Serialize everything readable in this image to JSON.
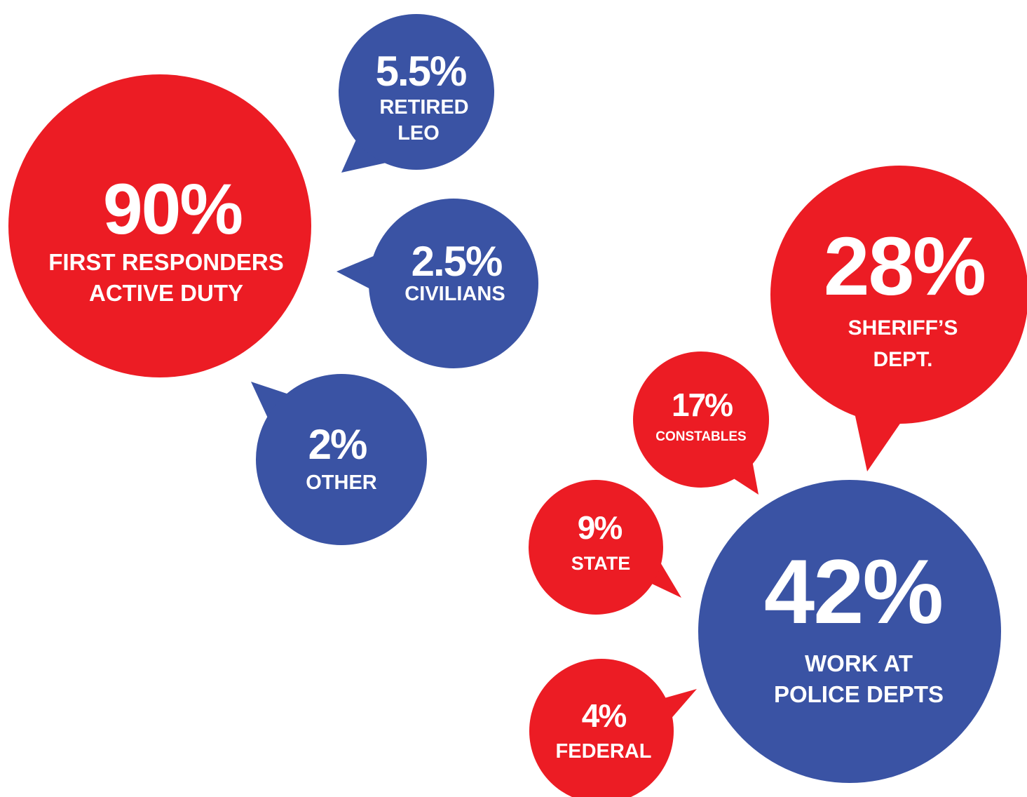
{
  "colors": {
    "red": "#ec1c24",
    "blue": "#3a53a4",
    "text": "#ffffff"
  },
  "bubbles": {
    "first_responders": {
      "value": "90%",
      "line1": "FIRST RESPONDERS",
      "line2": "ACTIVE DUTY",
      "color": "red"
    },
    "retired_leo": {
      "value": "5.5%",
      "line1": "RETIRED",
      "line2": "LEO",
      "color": "blue"
    },
    "civilians": {
      "value": "2.5%",
      "line1": "CIVILIANS",
      "color": "blue"
    },
    "other": {
      "value": "2%",
      "line1": "OTHER",
      "color": "blue"
    },
    "sheriffs": {
      "value": "28%",
      "line1": "SHERIFF’S",
      "line2": "DEPT.",
      "color": "red"
    },
    "constables": {
      "value": "17%",
      "line1": "CONSTABLES",
      "color": "red"
    },
    "state": {
      "value": "9%",
      "line1": "STATE",
      "color": "red"
    },
    "police": {
      "value": "42%",
      "line1": "WORK AT",
      "line2": "POLICE DEPTS",
      "color": "blue"
    },
    "federal": {
      "value": "4%",
      "line1": "FEDERAL",
      "color": "red"
    }
  }
}
